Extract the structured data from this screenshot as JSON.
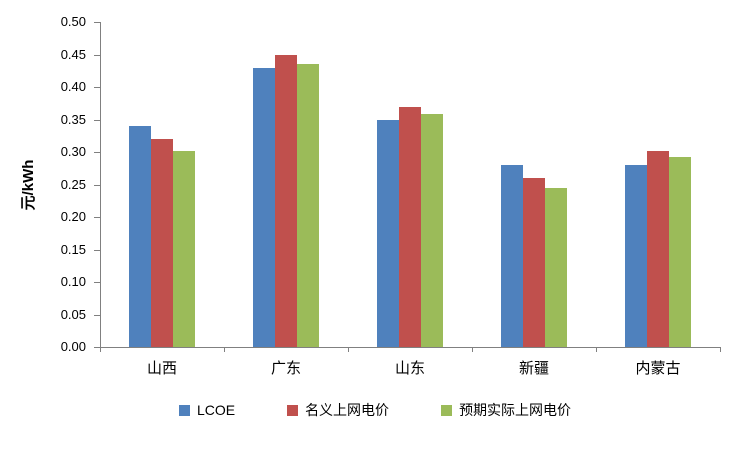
{
  "chart_data": {
    "type": "bar",
    "title": "",
    "xlabel": "",
    "ylabel": "元/kWh",
    "ylim": [
      0,
      0.5
    ],
    "ytick_step": 0.05,
    "ytick_decimals": 2,
    "grid": false,
    "legend_position": "bottom",
    "categories": [
      "山西",
      "广东",
      "山东",
      "新疆",
      "内蒙古"
    ],
    "series": [
      {
        "name": "LCOE",
        "color": "#4F81BD",
        "values": [
          0.34,
          0.43,
          0.35,
          0.28,
          0.28
        ]
      },
      {
        "name": "名义上网电价",
        "color": "#C0504D",
        "values": [
          0.32,
          0.45,
          0.37,
          0.26,
          0.301
        ]
      },
      {
        "name": "预期实际上网电价",
        "color": "#9BBB59",
        "values": [
          0.302,
          0.435,
          0.358,
          0.245,
          0.293
        ]
      }
    ]
  },
  "colors": {
    "axis": "#808080",
    "text": "#000000",
    "background": "#FFFFFF"
  }
}
